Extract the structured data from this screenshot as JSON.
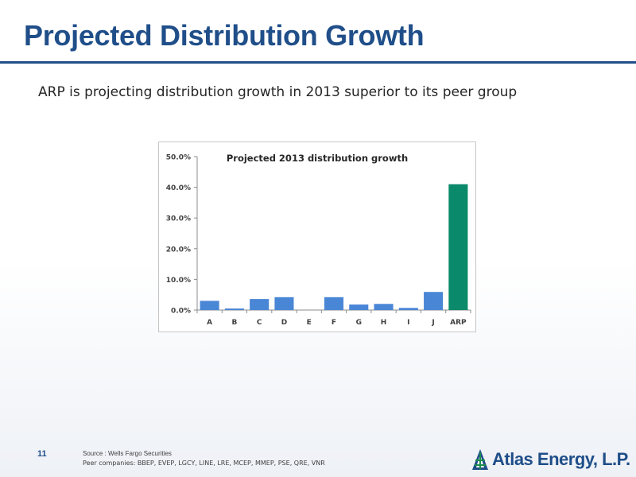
{
  "slide": {
    "title": "Projected Distribution Growth",
    "subtitle": "ARP is projecting distribution growth in 2013 superior to its peer group",
    "page_number": "11",
    "source": "Source : Wells Fargo Securities",
    "peers": "Peer companies: BBEP, EVEP, LGCY, LINE, LRE, MCEP, MMEP, PSE, QRE, VNR",
    "logo_text": "Atlas Energy, L.P.",
    "logo_icon": "oil-derrick-icon"
  },
  "colors": {
    "title": "#1f4e89",
    "peer_bar": "#4a86d6",
    "arp_bar": "#0a8a6a"
  },
  "chart_data": {
    "type": "bar",
    "title": "Projected 2013 distribution growth",
    "xlabel": "",
    "ylabel": "",
    "categories": [
      "A",
      "B",
      "C",
      "D",
      "E",
      "F",
      "G",
      "H",
      "I",
      "J",
      "ARP"
    ],
    "values": [
      3.0,
      0.5,
      3.6,
      4.2,
      0.0,
      4.2,
      1.8,
      2.0,
      0.7,
      5.9,
      41.0
    ],
    "highlight": "ARP",
    "ylim": [
      0,
      50
    ],
    "yticks": [
      "0.0%",
      "10.0%",
      "20.0%",
      "30.0%",
      "40.0%",
      "50.0%"
    ],
    "grid": false,
    "legend": "none"
  }
}
